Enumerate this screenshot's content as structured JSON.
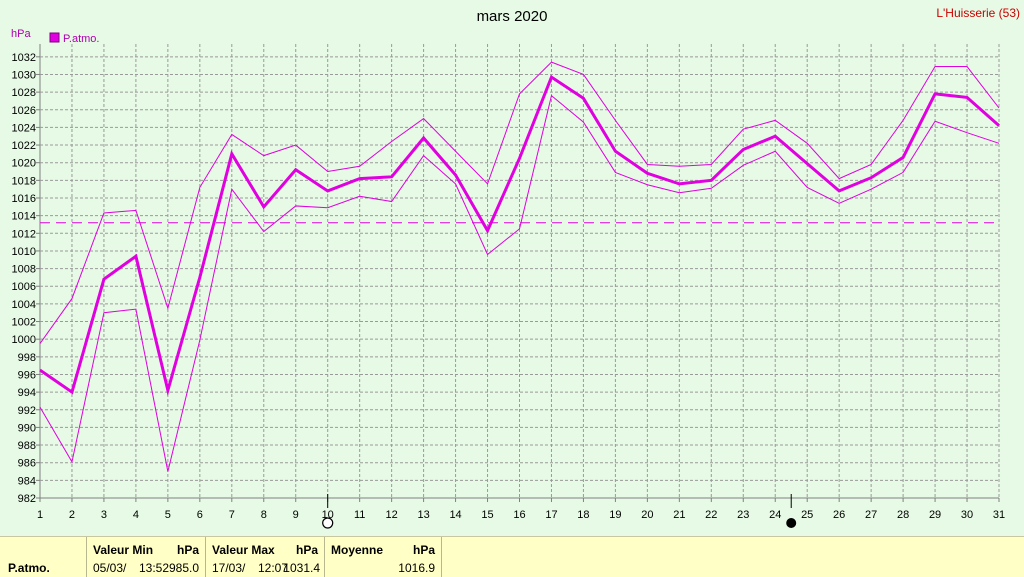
{
  "station": "L'Huisserie (53)",
  "chart_data": {
    "type": "line",
    "title": "mars 2020",
    "ylabel": "hPa",
    "ylim": [
      982,
      1033
    ],
    "y_ticks": [
      982,
      984,
      986,
      988,
      990,
      992,
      994,
      996,
      998,
      1000,
      1002,
      1004,
      1006,
      1008,
      1010,
      1012,
      1014,
      1016,
      1018,
      1020,
      1022,
      1024,
      1026,
      1028,
      1030,
      1032
    ],
    "x": [
      1,
      2,
      3,
      4,
      5,
      6,
      7,
      8,
      9,
      10,
      11,
      12,
      13,
      14,
      15,
      16,
      17,
      18,
      19,
      20,
      21,
      22,
      23,
      24,
      25,
      26,
      27,
      28,
      29,
      30,
      31
    ],
    "legend": [
      "P.atmo."
    ],
    "mean_line": 1013.2,
    "series": [
      {
        "name": "P.atmo.",
        "role": "average",
        "values": [
          996.5,
          994.0,
          1006.8,
          1009.4,
          994.2,
          1007.0,
          1021.0,
          1015.0,
          1019.2,
          1016.8,
          1018.2,
          1018.4,
          1022.8,
          1018.6,
          1012.3,
          1020.5,
          1029.7,
          1027.3,
          1021.3,
          1018.8,
          1017.6,
          1018.0,
          1021.5,
          1023.0,
          1019.9,
          1016.8,
          1018.3,
          1020.6,
          1027.8,
          1027.4,
          1024.2
        ],
        "color": "#e000e0"
      },
      {
        "role": "max",
        "values": [
          999.5,
          1004.6,
          1014.3,
          1014.6,
          1003.5,
          1017.2,
          1023.2,
          1020.8,
          1022.0,
          1019.0,
          1019.6,
          1022.4,
          1025.0,
          1021.3,
          1017.6,
          1027.8,
          1031.4,
          1030.0,
          1024.8,
          1019.8,
          1019.6,
          1019.8,
          1023.8,
          1024.8,
          1022.2,
          1018.2,
          1019.8,
          1024.8,
          1030.9,
          1030.9,
          1026.2
        ],
        "color": "#e000e0"
      },
      {
        "role": "min",
        "values": [
          992.3,
          986.1,
          1003.0,
          1003.4,
          985.0,
          999.9,
          1017.0,
          1012.2,
          1015.1,
          1014.9,
          1016.2,
          1015.6,
          1020.8,
          1017.6,
          1009.6,
          1012.5,
          1027.6,
          1024.6,
          1018.9,
          1017.5,
          1016.6,
          1017.1,
          1019.7,
          1021.3,
          1017.2,
          1015.4,
          1017.0,
          1018.9,
          1024.7,
          1023.4,
          1022.2
        ],
        "color": "#e000e0"
      }
    ],
    "moon_phases": [
      {
        "day": 10,
        "phase": "full"
      },
      {
        "day": 24.5,
        "phase": "new"
      }
    ],
    "grid": true
  },
  "footer": {
    "label": "P.atmo.",
    "min_header": "Valeur Min",
    "min_unit": "hPa",
    "min_date": "05/03/",
    "min_time": "13:52",
    "min_value": "985.0",
    "max_header": "Valeur Max",
    "max_unit": "hPa",
    "max_date": "17/03/",
    "max_time": "12:07",
    "max_value": "1031.4",
    "avg_header": "Moyenne",
    "avg_unit": "hPa",
    "avg_value": "1016.9"
  }
}
